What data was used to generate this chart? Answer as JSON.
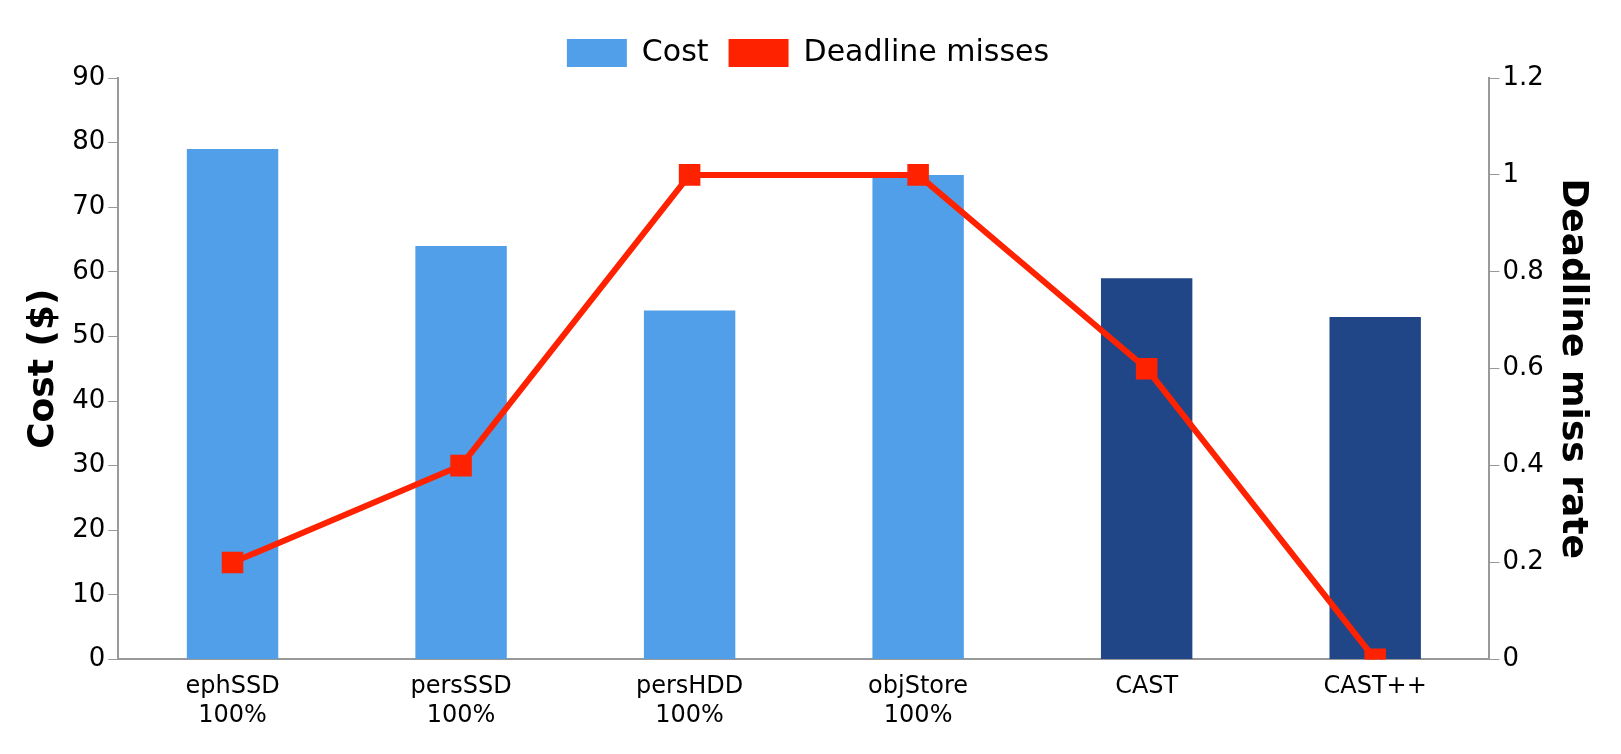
{
  "chart_data": {
    "type": "bar",
    "categories": [
      "ephSSD\n100%",
      "persSSD\n100%",
      "persHDD\n100%",
      "objStore\n100%",
      "CAST",
      "CAST++"
    ],
    "series": [
      {
        "name": "Cost",
        "colors": [
          "#509fe8",
          "#509fe8",
          "#509fe8",
          "#509fe8",
          "#214687",
          "#214687"
        ],
        "color": "#509fe8",
        "values": [
          79,
          64,
          54,
          75,
          59,
          53
        ]
      },
      {
        "name": "Deadline misses",
        "type": "line",
        "axis": "y2",
        "color": "#ff2200",
        "values": [
          0.2,
          0.4,
          1,
          1,
          0.6,
          0
        ]
      }
    ],
    "ylabel": "Cost ($)",
    "y2label": "Deadline miss rate",
    "ylim": [
      0,
      90
    ],
    "yticks": [
      0,
      10,
      20,
      30,
      40,
      50,
      60,
      70,
      80,
      90
    ],
    "y2lim": [
      0,
      1.2
    ],
    "y2ticks": [
      0,
      0.2,
      0.4,
      0.6,
      0.8,
      1,
      1.2
    ],
    "legend": "top",
    "grid": false,
    "marker": "square"
  }
}
